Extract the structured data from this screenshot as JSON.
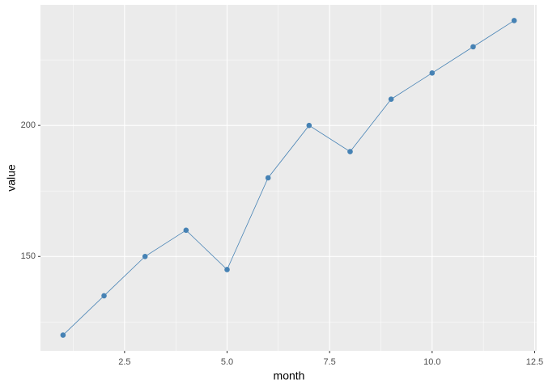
{
  "chart_data": {
    "type": "line",
    "x_label": "month",
    "y_label": "value",
    "x": [
      1,
      2,
      3,
      4,
      5,
      6,
      7,
      8,
      9,
      10,
      11,
      12
    ],
    "series": [
      {
        "color": "#4682b4",
        "values": [
          120,
          135,
          150,
          160,
          145,
          180,
          200,
          190,
          210,
          220,
          230,
          240
        ]
      }
    ],
    "xlim": [
      0.45,
      12.55
    ],
    "ylim": [
      114,
      246
    ],
    "xticks": [
      2.5,
      {
        "value": 5,
        "label": "5.0"
      },
      7.5,
      {
        "value": 10,
        "label": "10.0"
      },
      12.5
    ],
    "yticks": [
      150,
      200
    ],
    "x_minor_ticks": [
      1.25,
      3.75,
      6.25,
      8.75,
      11.25
    ],
    "y_minor_ticks": [
      125,
      175,
      225
    ],
    "grid": true,
    "panel_color": "#ebebeb"
  }
}
